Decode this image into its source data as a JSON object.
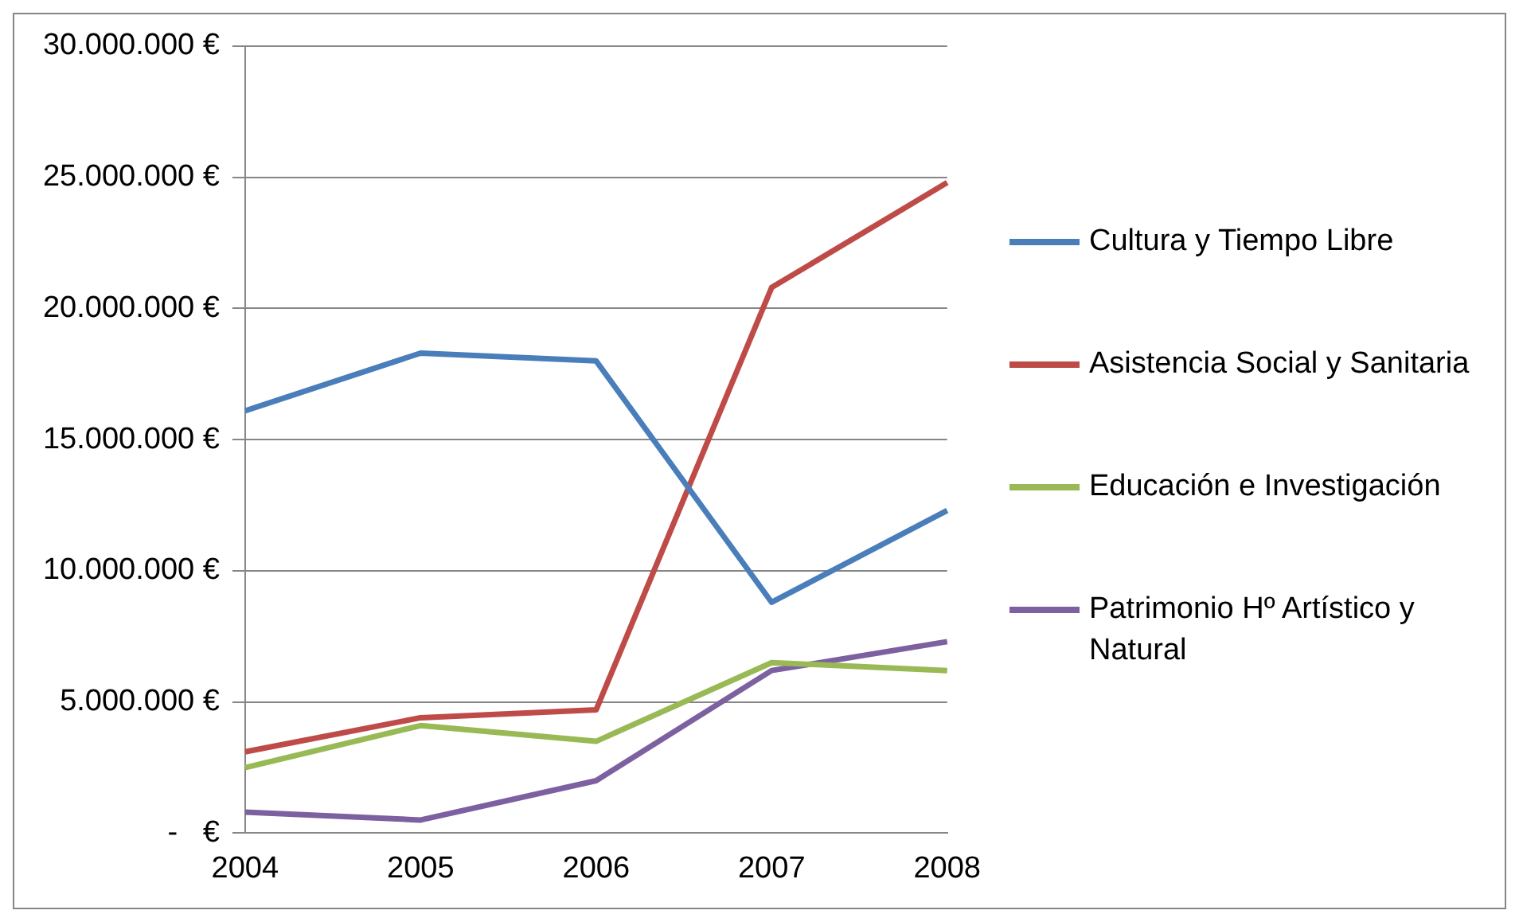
{
  "chart_data": {
    "type": "line",
    "categories": [
      "2004",
      "2005",
      "2006",
      "2007",
      "2008"
    ],
    "series": [
      {
        "name": "Cultura y Tiempo Libre",
        "color": "#4a7ebb",
        "values": [
          16100000,
          18300000,
          18000000,
          8800000,
          12300000
        ]
      },
      {
        "name": "Asistencia Social y Sanitaria",
        "color": "#be4b48",
        "values": [
          3100000,
          4400000,
          4700000,
          20800000,
          24800000
        ]
      },
      {
        "name": "Educación e Investigación",
        "color": "#98b954",
        "values": [
          2500000,
          4100000,
          3500000,
          6500000,
          6200000
        ]
      },
      {
        "name": "Patrimonio Hº Artístico y Natural",
        "color": "#7d60a0",
        "values": [
          800000,
          500000,
          2000000,
          6200000,
          7300000
        ]
      }
    ],
    "ylim": [
      0,
      30000000
    ],
    "yticks": [
      {
        "value": 0,
        "label": "-   €"
      },
      {
        "value": 5000000,
        "label": "5.000.000 €"
      },
      {
        "value": 10000000,
        "label": "10.000.000 €"
      },
      {
        "value": 15000000,
        "label": "15.000.000 €"
      },
      {
        "value": 20000000,
        "label": "20.000.000 €"
      },
      {
        "value": 25000000,
        "label": "25.000.000 €"
      },
      {
        "value": 30000000,
        "label": "30.000.000 €"
      }
    ],
    "grid": "y",
    "legend": "right",
    "marker": "none",
    "line_style": "solid"
  }
}
